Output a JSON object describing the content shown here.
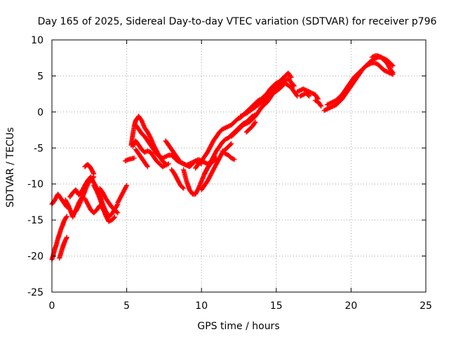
{
  "chart_data": {
    "type": "scatter",
    "title": "Day 165 of 2025, Sidereal Day-to-day VTEC variation (SDTVAR) for receiver p796",
    "xlabel": "GPS time / hours",
    "ylabel": "SDTVAR / TECUs",
    "xlim": [
      0,
      25
    ],
    "ylim": [
      -25,
      10
    ],
    "xticks": [
      "0",
      "5",
      "10",
      "15",
      "20",
      "25"
    ],
    "yticks": [
      "10",
      "5",
      "0",
      "-5",
      "-10",
      "-15",
      "-20",
      "-25"
    ],
    "grid": true,
    "legend": "none",
    "marker": "plus",
    "colors": {
      "series": "#ff0000",
      "axes": "#000000",
      "grid": "#a0a0a0"
    },
    "series": [
      {
        "x": [
          0.0,
          0.2,
          0.4,
          0.6,
          0.8,
          1.0
        ],
        "y": [
          -12.8,
          -12.2,
          -11.4,
          -12.0,
          -12.6,
          -13.2
        ]
      },
      {
        "x": [
          0.0,
          0.1,
          0.2,
          0.3,
          0.4,
          0.5,
          0.6,
          0.7,
          0.8,
          0.9,
          1.0
        ],
        "y": [
          -20.5,
          -19.8,
          -19.0,
          -18.4,
          -17.6,
          -17.0,
          -16.3,
          -15.8,
          -15.2,
          -14.8,
          -14.5
        ]
      },
      {
        "x": [
          0.5,
          0.6,
          0.7,
          0.8,
          0.9,
          1.0
        ],
        "y": [
          -20.3,
          -19.6,
          -18.9,
          -18.3,
          -17.8,
          -17.4
        ]
      },
      {
        "x": [
          0.9,
          1.0,
          1.1,
          1.2,
          1.3,
          1.4
        ],
        "y": [
          -12.2,
          -12.6,
          -13.0,
          -13.5,
          -14.0,
          -14.6
        ]
      },
      {
        "x": [
          1.2,
          1.4,
          1.6,
          1.8,
          2.0,
          2.2,
          2.4,
          2.6,
          2.8,
          3.0,
          3.2,
          3.4,
          3.6,
          3.8,
          4.0,
          4.2,
          4.4
        ],
        "y": [
          -11.8,
          -11.2,
          -10.8,
          -11.5,
          -11.0,
          -10.2,
          -9.5,
          -9.0,
          -9.8,
          -10.6,
          -11.6,
          -12.8,
          -13.8,
          -14.5,
          -14.2,
          -13.5,
          -12.8
        ]
      },
      {
        "x": [
          1.4,
          1.6,
          1.8,
          2.0,
          2.2
        ],
        "y": [
          -14.5,
          -13.6,
          -12.6,
          -11.9,
          -11.0
        ]
      },
      {
        "x": [
          1.6,
          1.8,
          2.0,
          2.2,
          2.4,
          2.6,
          2.8
        ],
        "y": [
          -13.8,
          -13.0,
          -12.0,
          -11.0,
          -10.0,
          -9.4,
          -9.0
        ]
      },
      {
        "x": [
          2.2,
          2.3,
          2.4,
          2.5,
          2.6,
          2.7,
          2.8
        ],
        "y": [
          -7.6,
          -7.4,
          -7.3,
          -7.5,
          -7.8,
          -8.2,
          -8.6
        ]
      },
      {
        "x": [
          2.2,
          2.4,
          2.6,
          2.8,
          3.0,
          3.2,
          3.4,
          3.6
        ],
        "y": [
          -12.0,
          -12.8,
          -13.6,
          -14.0,
          -13.6,
          -13.0,
          -13.4,
          -14.2
        ]
      },
      {
        "x": [
          2.8,
          3.0,
          3.2,
          3.4,
          3.6,
          3.8,
          4.0,
          4.2
        ],
        "y": [
          -10.2,
          -11.0,
          -12.0,
          -13.2,
          -14.4,
          -15.2,
          -15.0,
          -14.6
        ]
      },
      {
        "x": [
          3.2,
          3.4,
          3.6,
          3.8,
          4.0,
          4.2,
          4.4
        ],
        "y": [
          -10.6,
          -11.2,
          -12.0,
          -12.6,
          -13.2,
          -13.6,
          -14.0
        ]
      },
      {
        "x": [
          4.4,
          4.6,
          4.8,
          5.0
        ],
        "y": [
          -12.6,
          -11.8,
          -11.0,
          -10.2
        ]
      },
      {
        "x": [
          4.9,
          5.1,
          5.3,
          5.5
        ],
        "y": [
          -6.8,
          -6.6,
          -6.5,
          -6.4
        ]
      },
      {
        "x": [
          5.3,
          5.4,
          5.5,
          5.6,
          5.8,
          6.0,
          6.2,
          6.4,
          6.6,
          6.8,
          7.0,
          7.2,
          7.4,
          7.6
        ],
        "y": [
          -4.6,
          -3.2,
          -2.0,
          -1.2,
          -0.6,
          -1.2,
          -2.2,
          -2.8,
          -3.6,
          -4.6,
          -5.4,
          -6.2,
          -6.8,
          -7.2
        ]
      },
      {
        "x": [
          5.4,
          5.6,
          5.8,
          6.0,
          6.2,
          6.4,
          6.6,
          6.8,
          7.0,
          7.2,
          7.4,
          7.6,
          7.8
        ],
        "y": [
          -4.8,
          -4.0,
          -4.6,
          -5.2,
          -5.6,
          -5.4,
          -5.6,
          -6.2,
          -6.8,
          -7.2,
          -7.6,
          -7.4,
          -7.2
        ]
      },
      {
        "x": [
          5.6,
          5.8,
          6.0,
          6.2,
          6.4,
          6.6,
          6.8,
          7.0,
          7.2,
          7.4,
          7.6,
          7.8,
          8.0,
          8.2,
          8.4,
          8.6,
          8.8,
          9.0,
          9.2,
          9.4,
          9.6,
          9.8,
          10.0
        ],
        "y": [
          -1.8,
          -2.4,
          -3.0,
          -3.4,
          -4.0,
          -4.6,
          -5.2,
          -5.8,
          -6.2,
          -6.4,
          -6.2,
          -6.0,
          -6.0,
          -6.4,
          -6.8,
          -7.0,
          -7.2,
          -7.4,
          -7.2,
          -7.0,
          -6.8,
          -7.0,
          -7.2
        ]
      },
      {
        "x": [
          5.6,
          5.8,
          6.0,
          6.2,
          6.4
        ],
        "y": [
          -5.2,
          -5.8,
          -6.4,
          -7.0,
          -7.6
        ]
      },
      {
        "x": [
          7.6,
          7.8,
          8.0,
          8.2,
          8.4,
          8.6,
          8.8,
          9.0,
          9.2,
          9.4,
          9.6,
          9.8,
          10.0,
          10.2,
          10.4,
          10.6,
          10.8
        ],
        "y": [
          -4.0,
          -4.6,
          -5.2,
          -5.8,
          -6.4,
          -7.0,
          -7.2,
          -7.4,
          -7.6,
          -7.2,
          -6.8,
          -6.6,
          -6.8,
          -7.0,
          -7.2,
          -7.0,
          -6.6
        ]
      },
      {
        "x": [
          8.0,
          8.2,
          8.4,
          8.6,
          8.8
        ],
        "y": [
          -8.0,
          -8.6,
          -9.4,
          -10.2,
          -10.6
        ]
      },
      {
        "x": [
          8.8,
          9.0,
          9.2,
          9.4,
          9.6,
          9.8,
          10.0,
          10.2,
          10.4,
          10.6,
          10.8,
          11.0
        ],
        "y": [
          -8.0,
          -9.6,
          -10.8,
          -11.4,
          -11.4,
          -10.6,
          -9.6,
          -8.6,
          -7.8,
          -7.2,
          -6.8,
          -6.4
        ]
      },
      {
        "x": [
          9.6,
          9.8,
          10.0,
          10.2,
          10.4,
          10.6,
          10.8,
          11.0,
          11.2,
          11.4,
          11.6,
          11.8,
          12.0,
          12.2,
          12.4,
          12.6,
          12.8,
          13.0,
          13.2,
          13.4,
          13.6,
          13.8,
          14.0,
          14.2,
          14.4,
          14.6,
          14.8,
          15.0,
          15.2,
          15.4,
          15.6,
          15.8,
          16.0
        ],
        "y": [
          -7.8,
          -7.2,
          -6.8,
          -6.2,
          -5.6,
          -4.8,
          -4.0,
          -3.4,
          -2.8,
          -2.4,
          -2.2,
          -2.0,
          -1.8,
          -1.4,
          -1.0,
          -0.8,
          -0.4,
          0.0,
          0.4,
          0.8,
          1.2,
          1.6,
          1.8,
          2.2,
          2.6,
          3.2,
          3.6,
          4.0,
          4.2,
          4.6,
          5.0,
          5.4,
          4.8
        ]
      },
      {
        "x": [
          10.0,
          10.2,
          10.4,
          10.6,
          10.8,
          11.0,
          11.2,
          11.4,
          11.6,
          11.8,
          12.0
        ],
        "y": [
          -10.8,
          -10.2,
          -9.6,
          -8.8,
          -8.0,
          -7.2,
          -6.4,
          -5.6,
          -5.2,
          -4.8,
          -4.4
        ]
      },
      {
        "x": [
          10.2,
          10.4,
          10.6,
          10.8,
          11.0,
          11.2,
          11.4,
          11.6,
          11.8,
          12.0,
          12.2,
          12.4,
          12.6,
          12.8,
          13.0,
          13.2,
          13.4,
          13.6
        ],
        "y": [
          -8.6,
          -7.8,
          -7.0,
          -6.2,
          -5.4,
          -4.8,
          -4.2,
          -3.8,
          -3.6,
          -3.2,
          -2.8,
          -2.4,
          -2.0,
          -1.6,
          -1.4,
          -1.0,
          -0.6,
          -0.4
        ]
      },
      {
        "x": [
          11.4,
          11.6,
          11.8,
          12.0,
          12.2
        ],
        "y": [
          -5.4,
          -5.8,
          -6.0,
          -6.4,
          -6.6
        ]
      },
      {
        "x": [
          12.0,
          12.4,
          12.8,
          13.2,
          13.6,
          14.0,
          14.4,
          14.8,
          15.2,
          15.6,
          16.0
        ],
        "y": [
          -3.4,
          -2.6,
          -1.8,
          -1.4,
          -0.6,
          0.6,
          1.4,
          2.6,
          3.2,
          4.0,
          3.4
        ]
      },
      {
        "x": [
          12.6,
          13.0,
          13.4,
          13.8,
          14.2,
          14.6,
          15.0,
          15.4,
          15.8,
          16.2
        ],
        "y": [
          -0.6,
          -0.2,
          0.4,
          1.0,
          1.6,
          2.4,
          3.4,
          4.2,
          4.6,
          3.6
        ]
      },
      {
        "x": [
          13.0,
          13.2,
          13.4,
          13.6
        ],
        "y": [
          -2.8,
          -2.4,
          -2.0,
          -1.4
        ]
      },
      {
        "x": [
          16.0,
          16.2,
          16.4
        ],
        "y": [
          3.4,
          2.8,
          2.2
        ]
      },
      {
        "x": [
          16.4,
          16.6,
          16.8,
          17.0,
          17.2,
          17.4,
          17.6,
          17.8
        ],
        "y": [
          2.8,
          3.0,
          3.2,
          3.0,
          2.8,
          2.6,
          2.4,
          1.8
        ]
      },
      {
        "x": [
          16.6,
          16.8,
          17.0,
          17.2
        ],
        "y": [
          2.2,
          2.4,
          2.6,
          2.2
        ]
      },
      {
        "x": [
          17.6,
          17.8,
          18.0
        ],
        "y": [
          1.6,
          1.4,
          0.8
        ]
      },
      {
        "x": [
          18.2,
          18.4,
          18.6,
          18.8,
          19.0,
          19.2,
          19.4,
          19.6,
          19.8,
          20.0,
          20.2,
          20.4,
          20.6,
          20.8,
          21.0,
          21.2,
          21.4,
          21.6,
          21.8,
          22.0,
          22.2,
          22.4,
          22.6,
          22.8
        ],
        "y": [
          0.2,
          0.4,
          0.6,
          0.8,
          1.0,
          1.4,
          1.8,
          2.4,
          3.0,
          3.6,
          4.2,
          4.8,
          5.4,
          6.0,
          6.4,
          6.8,
          7.2,
          7.4,
          7.6,
          7.6,
          7.4,
          7.2,
          6.8,
          6.4
        ]
      },
      {
        "x": [
          18.4,
          18.6,
          18.8,
          19.0,
          19.2,
          19.4,
          19.6,
          19.8,
          20.0,
          20.2,
          20.4,
          20.6,
          20.8,
          21.0,
          21.2,
          21.4,
          21.6,
          21.8,
          22.0,
          22.2,
          22.4,
          22.6,
          22.8
        ],
        "y": [
          1.0,
          1.2,
          1.4,
          1.6,
          2.0,
          2.4,
          3.0,
          3.6,
          4.2,
          4.8,
          5.2,
          5.6,
          6.0,
          6.4,
          6.6,
          6.8,
          6.8,
          6.6,
          6.2,
          5.8,
          5.6,
          5.4,
          5.2
        ]
      },
      {
        "x": [
          21.4,
          21.6,
          21.8,
          22.0,
          22.2,
          22.4,
          22.6,
          22.8
        ],
        "y": [
          7.6,
          7.8,
          7.8,
          7.6,
          7.2,
          6.8,
          6.0,
          5.4
        ]
      }
    ]
  }
}
